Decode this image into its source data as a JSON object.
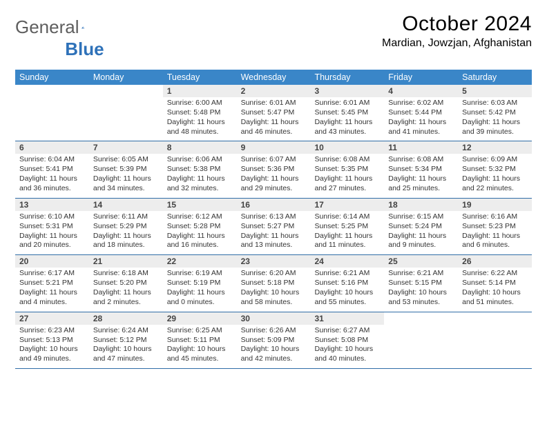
{
  "logo": {
    "text1": "General",
    "text2": "Blue"
  },
  "title": "October 2024",
  "location": "Mardian, Jowzjan, Afghanistan",
  "colors": {
    "header_bg": "#3a86c8",
    "week_border": "#2e6ca6",
    "daynum_bg": "#ededed",
    "logo_gray": "#5e5e5e",
    "logo_blue": "#2f72b9"
  },
  "typography": {
    "title_fontsize": 30,
    "location_fontsize": 16,
    "dow_fontsize": 12.5,
    "daynum_fontsize": 12,
    "detail_fontsize": 10.5
  },
  "dow": [
    "Sunday",
    "Monday",
    "Tuesday",
    "Wednesday",
    "Thursday",
    "Friday",
    "Saturday"
  ],
  "weeks": [
    [
      null,
      null,
      {
        "n": "1",
        "sunrise": "6:00 AM",
        "sunset": "5:48 PM",
        "daylight": "11 hours and 48 minutes."
      },
      {
        "n": "2",
        "sunrise": "6:01 AM",
        "sunset": "5:47 PM",
        "daylight": "11 hours and 46 minutes."
      },
      {
        "n": "3",
        "sunrise": "6:01 AM",
        "sunset": "5:45 PM",
        "daylight": "11 hours and 43 minutes."
      },
      {
        "n": "4",
        "sunrise": "6:02 AM",
        "sunset": "5:44 PM",
        "daylight": "11 hours and 41 minutes."
      },
      {
        "n": "5",
        "sunrise": "6:03 AM",
        "sunset": "5:42 PM",
        "daylight": "11 hours and 39 minutes."
      }
    ],
    [
      {
        "n": "6",
        "sunrise": "6:04 AM",
        "sunset": "5:41 PM",
        "daylight": "11 hours and 36 minutes."
      },
      {
        "n": "7",
        "sunrise": "6:05 AM",
        "sunset": "5:39 PM",
        "daylight": "11 hours and 34 minutes."
      },
      {
        "n": "8",
        "sunrise": "6:06 AM",
        "sunset": "5:38 PM",
        "daylight": "11 hours and 32 minutes."
      },
      {
        "n": "9",
        "sunrise": "6:07 AM",
        "sunset": "5:36 PM",
        "daylight": "11 hours and 29 minutes."
      },
      {
        "n": "10",
        "sunrise": "6:08 AM",
        "sunset": "5:35 PM",
        "daylight": "11 hours and 27 minutes."
      },
      {
        "n": "11",
        "sunrise": "6:08 AM",
        "sunset": "5:34 PM",
        "daylight": "11 hours and 25 minutes."
      },
      {
        "n": "12",
        "sunrise": "6:09 AM",
        "sunset": "5:32 PM",
        "daylight": "11 hours and 22 minutes."
      }
    ],
    [
      {
        "n": "13",
        "sunrise": "6:10 AM",
        "sunset": "5:31 PM",
        "daylight": "11 hours and 20 minutes."
      },
      {
        "n": "14",
        "sunrise": "6:11 AM",
        "sunset": "5:29 PM",
        "daylight": "11 hours and 18 minutes."
      },
      {
        "n": "15",
        "sunrise": "6:12 AM",
        "sunset": "5:28 PM",
        "daylight": "11 hours and 16 minutes."
      },
      {
        "n": "16",
        "sunrise": "6:13 AM",
        "sunset": "5:27 PM",
        "daylight": "11 hours and 13 minutes."
      },
      {
        "n": "17",
        "sunrise": "6:14 AM",
        "sunset": "5:25 PM",
        "daylight": "11 hours and 11 minutes."
      },
      {
        "n": "18",
        "sunrise": "6:15 AM",
        "sunset": "5:24 PM",
        "daylight": "11 hours and 9 minutes."
      },
      {
        "n": "19",
        "sunrise": "6:16 AM",
        "sunset": "5:23 PM",
        "daylight": "11 hours and 6 minutes."
      }
    ],
    [
      {
        "n": "20",
        "sunrise": "6:17 AM",
        "sunset": "5:21 PM",
        "daylight": "11 hours and 4 minutes."
      },
      {
        "n": "21",
        "sunrise": "6:18 AM",
        "sunset": "5:20 PM",
        "daylight": "11 hours and 2 minutes."
      },
      {
        "n": "22",
        "sunrise": "6:19 AM",
        "sunset": "5:19 PM",
        "daylight": "11 hours and 0 minutes."
      },
      {
        "n": "23",
        "sunrise": "6:20 AM",
        "sunset": "5:18 PM",
        "daylight": "10 hours and 58 minutes."
      },
      {
        "n": "24",
        "sunrise": "6:21 AM",
        "sunset": "5:16 PM",
        "daylight": "10 hours and 55 minutes."
      },
      {
        "n": "25",
        "sunrise": "6:21 AM",
        "sunset": "5:15 PM",
        "daylight": "10 hours and 53 minutes."
      },
      {
        "n": "26",
        "sunrise": "6:22 AM",
        "sunset": "5:14 PM",
        "daylight": "10 hours and 51 minutes."
      }
    ],
    [
      {
        "n": "27",
        "sunrise": "6:23 AM",
        "sunset": "5:13 PM",
        "daylight": "10 hours and 49 minutes."
      },
      {
        "n": "28",
        "sunrise": "6:24 AM",
        "sunset": "5:12 PM",
        "daylight": "10 hours and 47 minutes."
      },
      {
        "n": "29",
        "sunrise": "6:25 AM",
        "sunset": "5:11 PM",
        "daylight": "10 hours and 45 minutes."
      },
      {
        "n": "30",
        "sunrise": "6:26 AM",
        "sunset": "5:09 PM",
        "daylight": "10 hours and 42 minutes."
      },
      {
        "n": "31",
        "sunrise": "6:27 AM",
        "sunset": "5:08 PM",
        "daylight": "10 hours and 40 minutes."
      },
      null,
      null
    ]
  ],
  "labels": {
    "sunrise": "Sunrise:",
    "sunset": "Sunset:",
    "daylight": "Daylight:"
  }
}
